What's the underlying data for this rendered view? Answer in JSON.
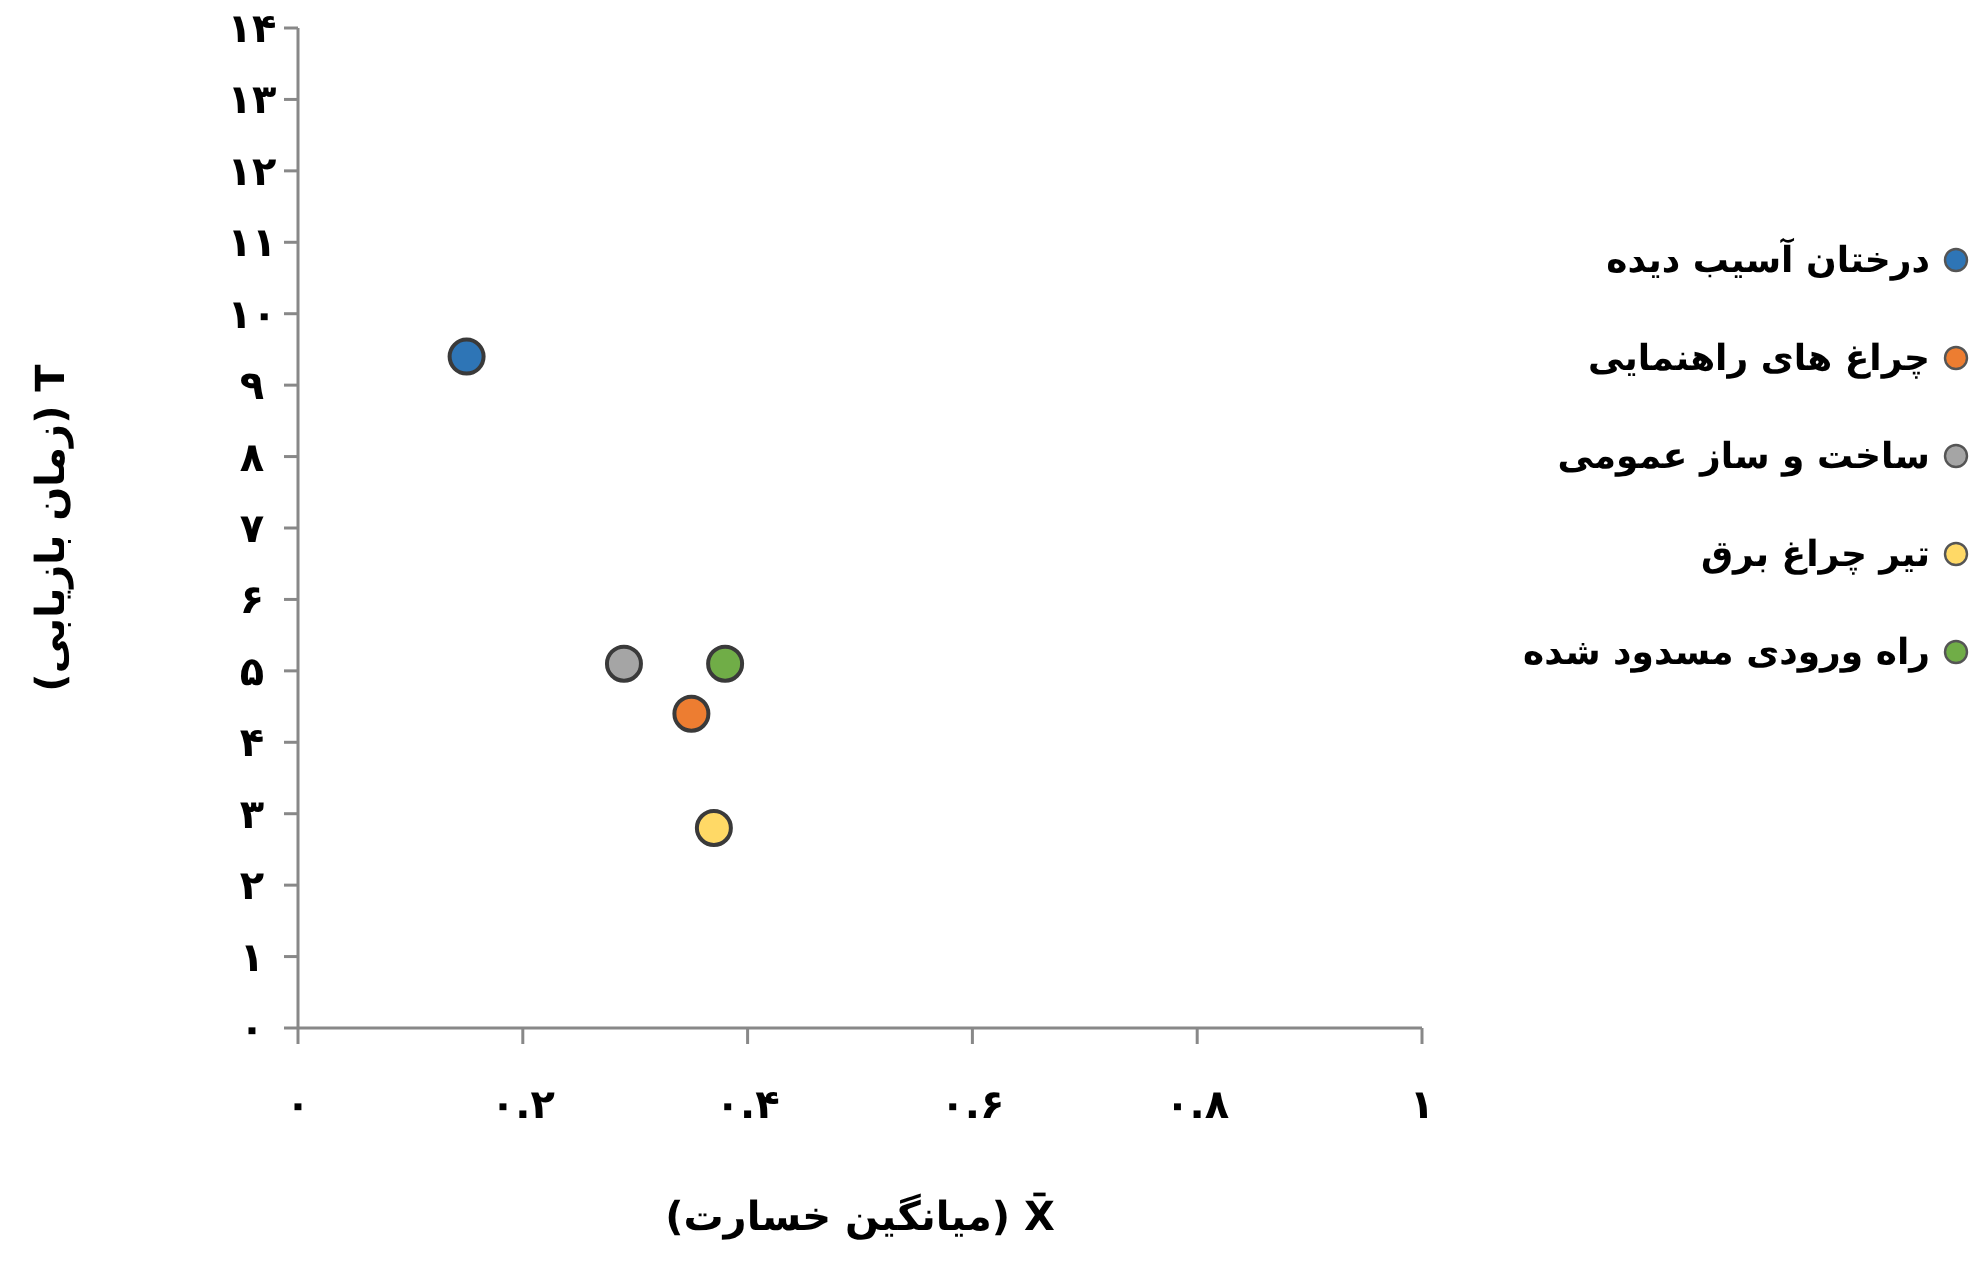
{
  "chart_data": {
    "type": "scatter",
    "xlabel": "X̄ (میانگین خسارت)",
    "ylabel": "T (زمان بازیابی)",
    "xlim": [
      0,
      1
    ],
    "ylim": [
      0,
      14
    ],
    "xticks": [
      {
        "value": 0,
        "label": "۰"
      },
      {
        "value": 0.2,
        "label": "۰.۲"
      },
      {
        "value": 0.4,
        "label": "۰.۴"
      },
      {
        "value": 0.6,
        "label": "۰.۶"
      },
      {
        "value": 0.8,
        "label": "۰.۸"
      },
      {
        "value": 1,
        "label": "۱"
      }
    ],
    "yticks": [
      {
        "value": 0,
        "label": "۰"
      },
      {
        "value": 1,
        "label": "۱"
      },
      {
        "value": 2,
        "label": "۲"
      },
      {
        "value": 3,
        "label": "۳"
      },
      {
        "value": 4,
        "label": "۴"
      },
      {
        "value": 5,
        "label": "۵"
      },
      {
        "value": 6,
        "label": "۶"
      },
      {
        "value": 7,
        "label": "۷"
      },
      {
        "value": 8,
        "label": "۸"
      },
      {
        "value": 9,
        "label": "۹"
      },
      {
        "value": 10,
        "label": "۱۰"
      },
      {
        "value": 11,
        "label": "۱۱"
      },
      {
        "value": 12,
        "label": "۱۲"
      },
      {
        "value": 13,
        "label": "۱۳"
      },
      {
        "value": 14,
        "label": "۱۴"
      }
    ],
    "grid": false,
    "legend": "right",
    "marker": "circle",
    "series": [
      {
        "name": "درختان آسیب دیده",
        "color": "#2e75b6",
        "x": [
          0.15
        ],
        "values": [
          9.4
        ]
      },
      {
        "name": "چراغ های راهنمایی",
        "color": "#ed7d31",
        "x": [
          0.35
        ],
        "values": [
          4.4
        ]
      },
      {
        "name": "ساخت و ساز عمومی",
        "color": "#a5a5a5",
        "x": [
          0.29
        ],
        "values": [
          5.1
        ]
      },
      {
        "name": "تیر چراغ برق",
        "color": "#ffd966",
        "x": [
          0.37
        ],
        "values": [
          2.8
        ]
      },
      {
        "name": "راه ورودی مسدود شده",
        "color": "#70ad47",
        "x": [
          0.38
        ],
        "values": [
          5.1
        ]
      }
    ]
  }
}
